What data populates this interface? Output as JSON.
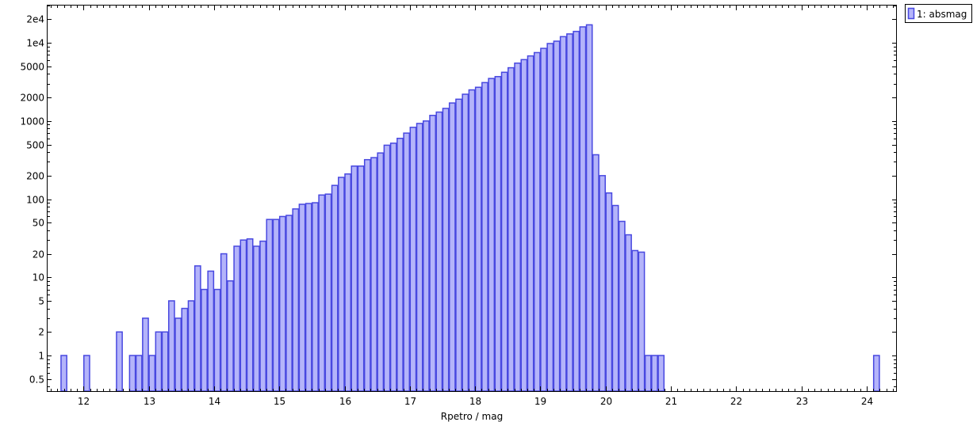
{
  "chart_data": {
    "type": "bar",
    "title": "",
    "xlabel": "Rpetro / mag",
    "ylabel": "",
    "y_scale": "log",
    "xlim": [
      11.45,
      24.45
    ],
    "ylim": [
      0.35,
      30000
    ],
    "grid": false,
    "legend_position": "top-right",
    "bin_width": 0.1,
    "x_ticks": [
      12,
      13,
      14,
      15,
      16,
      17,
      18,
      19,
      20,
      21,
      22,
      23,
      24
    ],
    "y_ticks": [
      {
        "value": 0.5,
        "label": "0.5"
      },
      {
        "value": 1,
        "label": "1"
      },
      {
        "value": 2,
        "label": "2"
      },
      {
        "value": 5,
        "label": "5"
      },
      {
        "value": 10,
        "label": "10"
      },
      {
        "value": 20,
        "label": "20"
      },
      {
        "value": 50,
        "label": "50"
      },
      {
        "value": 100,
        "label": "100"
      },
      {
        "value": 200,
        "label": "200"
      },
      {
        "value": 500,
        "label": "500"
      },
      {
        "value": 1000,
        "label": "1000"
      },
      {
        "value": 2000,
        "label": "2000"
      },
      {
        "value": 5000,
        "label": "5000"
      },
      {
        "value": 10000,
        "label": "1e4"
      },
      {
        "value": 20000,
        "label": "2e4"
      }
    ],
    "series": [
      {
        "name": "1: absmag",
        "fill": "#b4b4fa",
        "stroke": "#4848e0",
        "bins": [
          [
            11.7,
            1
          ],
          [
            12.05,
            1
          ],
          [
            12.55,
            2
          ],
          [
            12.75,
            1
          ],
          [
            12.85,
            1
          ],
          [
            12.95,
            3
          ],
          [
            13.05,
            1
          ],
          [
            13.15,
            2
          ],
          [
            13.25,
            2
          ],
          [
            13.35,
            5
          ],
          [
            13.45,
            3
          ],
          [
            13.55,
            4
          ],
          [
            13.65,
            5
          ],
          [
            13.75,
            14
          ],
          [
            13.85,
            7
          ],
          [
            13.95,
            12
          ],
          [
            14.05,
            7
          ],
          [
            14.15,
            20
          ],
          [
            14.25,
            9
          ],
          [
            14.35,
            25
          ],
          [
            14.45,
            30
          ],
          [
            14.55,
            31
          ],
          [
            14.65,
            25
          ],
          [
            14.75,
            29
          ],
          [
            14.85,
            55
          ],
          [
            14.95,
            55
          ],
          [
            15.05,
            60
          ],
          [
            15.15,
            62
          ],
          [
            15.25,
            75
          ],
          [
            15.35,
            86
          ],
          [
            15.45,
            88
          ],
          [
            15.55,
            90
          ],
          [
            15.65,
            113
          ],
          [
            15.75,
            116
          ],
          [
            15.85,
            150
          ],
          [
            15.95,
            190
          ],
          [
            16.05,
            210
          ],
          [
            16.15,
            265
          ],
          [
            16.25,
            265
          ],
          [
            16.35,
            320
          ],
          [
            16.45,
            340
          ],
          [
            16.55,
            390
          ],
          [
            16.65,
            490
          ],
          [
            16.75,
            520
          ],
          [
            16.85,
            600
          ],
          [
            16.95,
            700
          ],
          [
            17.05,
            830
          ],
          [
            17.15,
            930
          ],
          [
            17.25,
            1000
          ],
          [
            17.35,
            1180
          ],
          [
            17.45,
            1300
          ],
          [
            17.55,
            1450
          ],
          [
            17.65,
            1700
          ],
          [
            17.75,
            1900
          ],
          [
            17.85,
            2200
          ],
          [
            17.95,
            2500
          ],
          [
            18.05,
            2700
          ],
          [
            18.15,
            3100
          ],
          [
            18.25,
            3500
          ],
          [
            18.35,
            3700
          ],
          [
            18.45,
            4200
          ],
          [
            18.55,
            4800
          ],
          [
            18.65,
            5500
          ],
          [
            18.75,
            6100
          ],
          [
            18.85,
            6800
          ],
          [
            18.95,
            7500
          ],
          [
            19.05,
            8500
          ],
          [
            19.15,
            9800
          ],
          [
            19.25,
            10500
          ],
          [
            19.35,
            12000
          ],
          [
            19.45,
            13000
          ],
          [
            19.55,
            14000
          ],
          [
            19.65,
            16000
          ],
          [
            19.75,
            17000
          ],
          [
            19.85,
            370
          ],
          [
            19.95,
            200
          ],
          [
            20.05,
            120
          ],
          [
            20.15,
            83
          ],
          [
            20.25,
            52
          ],
          [
            20.35,
            35
          ],
          [
            20.45,
            22
          ],
          [
            20.55,
            21
          ],
          [
            20.65,
            1
          ],
          [
            20.75,
            1
          ],
          [
            20.85,
            1
          ],
          [
            24.15,
            1
          ]
        ]
      }
    ]
  }
}
